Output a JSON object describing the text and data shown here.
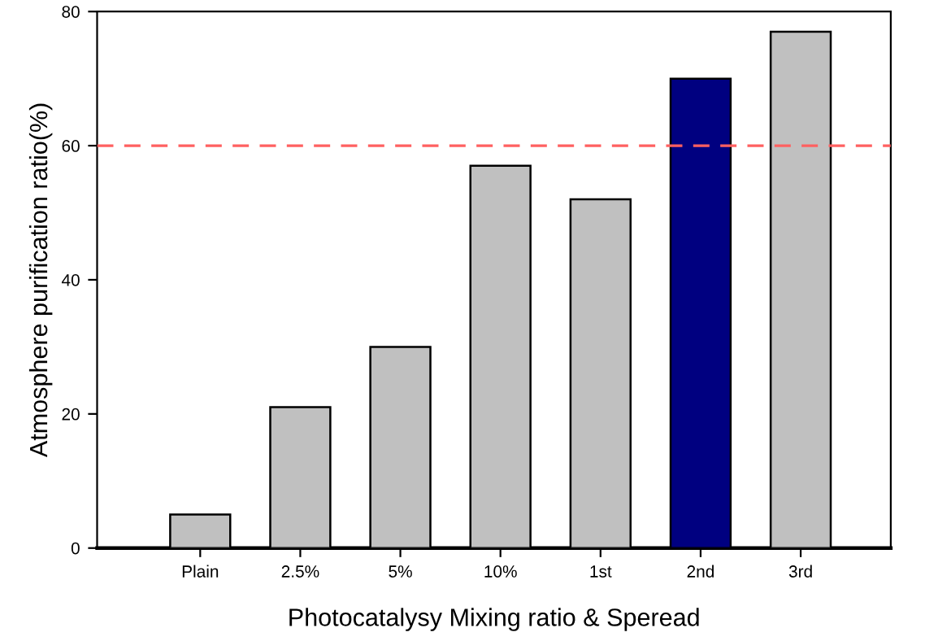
{
  "chart_data": {
    "type": "bar",
    "xlabel": "Photocatalysy Mixing ratio & Speread",
    "ylabel": "Atmosphere purification ratio(%)",
    "categories": [
      "Plain",
      "2.5%",
      "5%",
      "10%",
      "1st",
      "2nd",
      "3rd"
    ],
    "values": [
      5,
      21,
      30,
      57,
      52,
      70,
      77
    ],
    "colors": [
      "#c0c0c0",
      "#c0c0c0",
      "#c0c0c0",
      "#c0c0c0",
      "#c0c0c0",
      "#000080",
      "#c0c0c0"
    ],
    "ylim": [
      0,
      80
    ],
    "yticks": [
      0,
      20,
      40,
      60,
      80
    ],
    "grid": false,
    "legend": false,
    "ref_lines": [
      {
        "axis": "y",
        "value": 60,
        "color": "#ff6060",
        "line_style": "dashed"
      }
    ]
  }
}
